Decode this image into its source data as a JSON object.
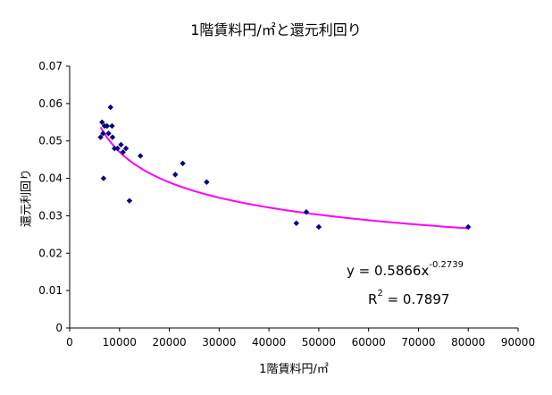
{
  "chart_data": {
    "type": "scatter",
    "title": "1階賃料円/㎡と還元利回り",
    "xlabel": "1階賃料円/㎡",
    "ylabel": "還元利回り",
    "xlim": [
      0,
      90000
    ],
    "ylim": [
      0,
      0.07
    ],
    "x_ticks": [
      "0",
      "10000",
      "20000",
      "30000",
      "40000",
      "50000",
      "60000",
      "70000",
      "80000",
      "90000"
    ],
    "y_ticks": [
      "0",
      "0.01",
      "0.02",
      "0.03",
      "0.04",
      "0.05",
      "0.06",
      "0.07"
    ],
    "grid": false,
    "legend": "none",
    "marker_color": "#000080",
    "trendline_color": "#ff00ff",
    "trendline": {
      "type": "power",
      "a": 0.5866,
      "b": -0.2739,
      "x_from": 6200,
      "x_to": 80000
    },
    "equation": {
      "prefix": "y = 0.5866x",
      "exponent": "-0.2739"
    },
    "r2": {
      "prefix": "R",
      "exponent": "2",
      "suffix": " = 0.7897"
    },
    "points": [
      {
        "x": 6200,
        "y": 0.051
      },
      {
        "x": 6500,
        "y": 0.055
      },
      {
        "x": 6700,
        "y": 0.052
      },
      {
        "x": 6800,
        "y": 0.04
      },
      {
        "x": 7000,
        "y": 0.054
      },
      {
        "x": 7500,
        "y": 0.054
      },
      {
        "x": 7800,
        "y": 0.052
      },
      {
        "x": 8200,
        "y": 0.059
      },
      {
        "x": 8500,
        "y": 0.054
      },
      {
        "x": 8600,
        "y": 0.051
      },
      {
        "x": 9000,
        "y": 0.048
      },
      {
        "x": 9600,
        "y": 0.048
      },
      {
        "x": 10300,
        "y": 0.049
      },
      {
        "x": 10700,
        "y": 0.047
      },
      {
        "x": 11300,
        "y": 0.048
      },
      {
        "x": 12000,
        "y": 0.034
      },
      {
        "x": 14200,
        "y": 0.046
      },
      {
        "x": 21200,
        "y": 0.041
      },
      {
        "x": 22700,
        "y": 0.044
      },
      {
        "x": 27500,
        "y": 0.039
      },
      {
        "x": 45500,
        "y": 0.028
      },
      {
        "x": 47500,
        "y": 0.031
      },
      {
        "x": 50000,
        "y": 0.027
      },
      {
        "x": 80000,
        "y": 0.027
      }
    ]
  }
}
